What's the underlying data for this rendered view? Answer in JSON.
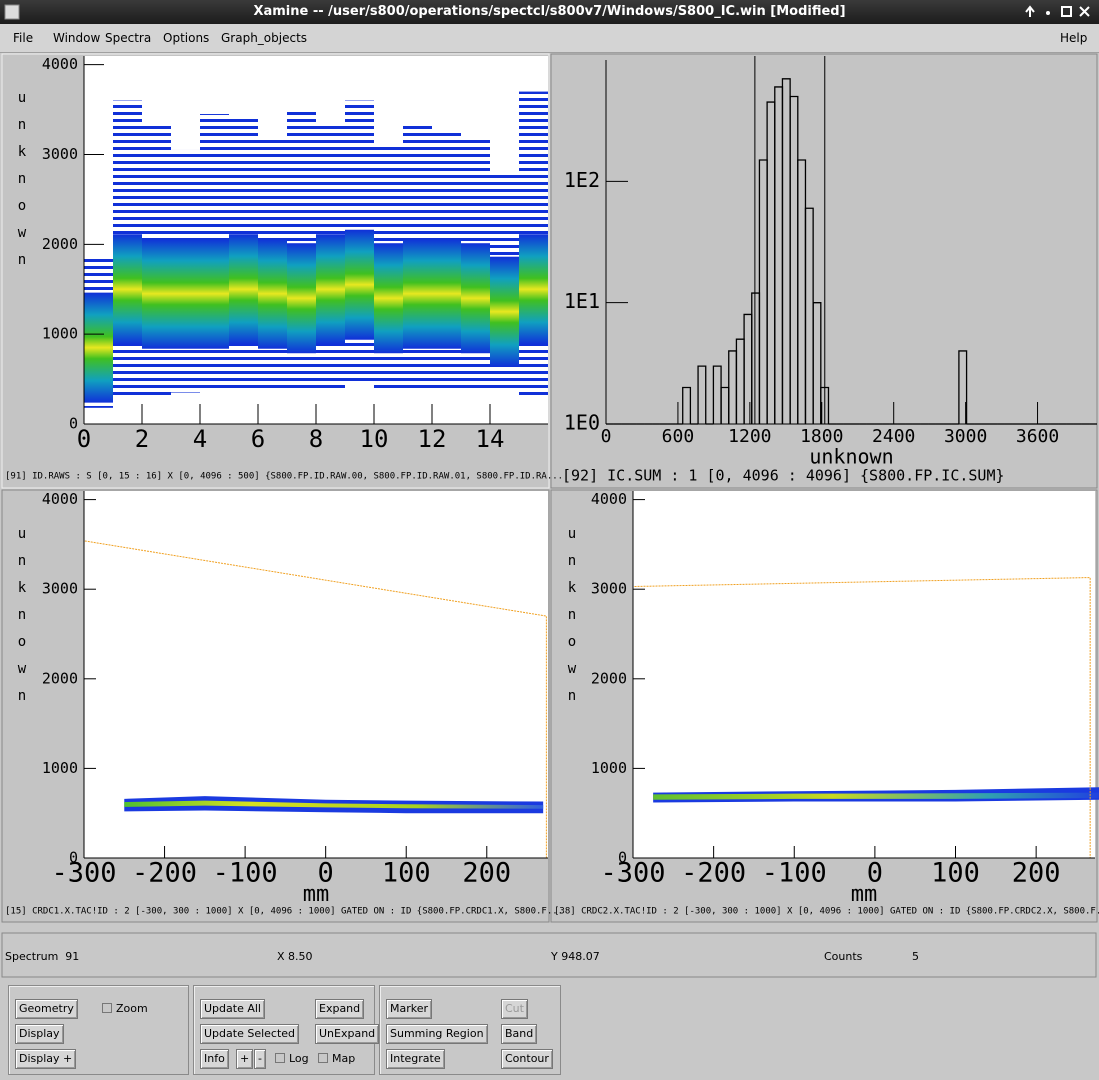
{
  "window": {
    "title": "Xamine -- /user/s800/operations/spectcl/s800v7/Windows/S800_IC.win [Modified]"
  },
  "menu": {
    "items": [
      "File",
      "Window",
      "Spectra",
      "Options",
      "Graph_objects"
    ],
    "help": "Help"
  },
  "chart_data": [
    {
      "type": "column-density",
      "ylabel": "unknown",
      "caption": "[91] ID.RAWS : S [0, 15 : 16] X [0, 4096 : 500] {S800.FP.ID.RAW.00, S800.FP.ID.RAW.01, S800.FP.ID.RA...",
      "xlim": [
        0,
        16
      ],
      "ylim": [
        0,
        4096
      ],
      "xticks": [
        0,
        2,
        4,
        6,
        8,
        10,
        12,
        14
      ],
      "yticks": [
        0,
        1000,
        2000,
        3000,
        4000
      ],
      "x": [
        0,
        1,
        2,
        3,
        4,
        5,
        6,
        7,
        8,
        9,
        10,
        11,
        12,
        13,
        14,
        15
      ],
      "top": [
        1850,
        3600,
        3350,
        3050,
        3450,
        3400,
        3200,
        3500,
        3350,
        3600,
        3100,
        3350,
        3250,
        3200,
        2800,
        3700
      ],
      "bottom": [
        180,
        300,
        300,
        350,
        400,
        400,
        400,
        400,
        380,
        450,
        380,
        400,
        400,
        400,
        400,
        280
      ],
      "peak": [
        850,
        1500,
        1450,
        1450,
        1450,
        1500,
        1450,
        1400,
        1500,
        1550,
        1400,
        1450,
        1450,
        1400,
        1250,
        1500
      ]
    },
    {
      "type": "histogram",
      "xlabel": "unknown",
      "log_y": true,
      "caption": "[92] IC.SUM : 1 [0, 4096 : 4096] {S800.FP.IC.SUM}",
      "xlim": [
        0,
        4096
      ],
      "ylim": [
        1,
        1000
      ],
      "xticks": [
        0,
        600,
        1200,
        1800,
        2400,
        3000,
        3600
      ],
      "yticks": [
        {
          "value": 1,
          "label": "1E0"
        },
        {
          "value": 10,
          "label": "1E1"
        },
        {
          "value": 100,
          "label": "1E2"
        }
      ],
      "bins": [
        0,
        64,
        128,
        192,
        256,
        320,
        384,
        448,
        512,
        576,
        640,
        704,
        768,
        832,
        896,
        960,
        1024,
        1088,
        1152,
        1216,
        1280,
        1344,
        1408,
        1472,
        1536,
        1600,
        1664,
        1728,
        1792,
        1856,
        1920,
        1984,
        2048,
        2112,
        2176,
        2240,
        2304,
        2368,
        2432,
        2496,
        2560,
        2624,
        2688,
        2752,
        2816,
        2880,
        2944,
        3008,
        3072,
        3136,
        3200,
        3264,
        3328,
        3392,
        3456,
        3520,
        3584,
        3648,
        3712,
        3776,
        3840,
        3904,
        3968,
        4032,
        4096
      ],
      "values": [
        0,
        0,
        0,
        0,
        0,
        0,
        1,
        0,
        1,
        1,
        2,
        1,
        3,
        1,
        3,
        2,
        4,
        5,
        8,
        12,
        150,
        450,
        600,
        700,
        500,
        150,
        60,
        10,
        2,
        1,
        1,
        1,
        1,
        1,
        1,
        1,
        1,
        1,
        1,
        1,
        1,
        1,
        1,
        1,
        1,
        1,
        4,
        1,
        1,
        0,
        0,
        0,
        0,
        0,
        0,
        0,
        0,
        0,
        0,
        0,
        0,
        0,
        0,
        0
      ],
      "gates": [
        1242,
        1825
      ]
    },
    {
      "type": "density2d",
      "xlabel": "mm",
      "ylabel": "unknown",
      "caption": "[15] CRDC1.X.TAC!ID : 2 [-300, 300 : 1000] X [0, 4096 : 1000] GATED ON : ID {S800.FP.CRDC1.X, S800.F...",
      "xlim": [
        -300,
        276
      ],
      "ylim": [
        0,
        4096
      ],
      "xticks": [
        -300,
        -200,
        -100,
        0,
        100,
        200
      ],
      "yticks": [
        0,
        1000,
        2000,
        3000,
        4000
      ],
      "gate": {
        "x": [
          -300,
          -300,
          274,
          274
        ],
        "y": [
          0,
          3540,
          2700,
          0
        ]
      },
      "density": {
        "x": [
          -250,
          -150,
          0,
          100,
          270
        ],
        "outer_low": [
          520,
          530,
          510,
          500,
          500
        ],
        "outer_high": [
          660,
          690,
          650,
          640,
          630
        ],
        "core_low": [
          570,
          585,
          565,
          555,
          550
        ],
        "core_high": [
          625,
          640,
          610,
          600,
          590
        ]
      }
    },
    {
      "type": "density2d",
      "xlabel": "mm",
      "ylabel": "unknown",
      "caption": "[38] CRDC2.X.TAC!ID : 2 [-300, 300 : 1000] X [0, 4096 : 1000] GATED ON : ID {S800.FP.CRDC2.X, S800.F...",
      "xlim": [
        -300,
        273
      ],
      "ylim": [
        0,
        4096
      ],
      "xticks": [
        -300,
        -200,
        -100,
        0,
        100,
        200
      ],
      "yticks": [
        0,
        1000,
        2000,
        3000,
        4000
      ],
      "gate": {
        "x": [
          -300,
          -300,
          267,
          267
        ],
        "y": [
          0,
          3030,
          3130,
          0
        ]
      },
      "density": {
        "x": [
          -275,
          -100,
          100,
          280
        ],
        "outer_low": [
          620,
          630,
          630,
          650
        ],
        "outer_high": [
          730,
          745,
          760,
          790
        ],
        "core_low": [
          650,
          660,
          660,
          670
        ],
        "core_high": [
          710,
          718,
          722,
          730
        ]
      }
    }
  ],
  "status": {
    "spectrum": "Spectrum  91",
    "x": "X 8.50",
    "y": "Y 948.07",
    "counts_label": "Counts",
    "counts": 5
  },
  "controls": {
    "geometry": "Geometry",
    "zoom": "Zoom",
    "display": "Display",
    "display_plus": "Display +",
    "update_all": "Update All",
    "expand": "Expand",
    "update_selected": "Update Selected",
    "unexpand": "UnExpand",
    "info": "Info",
    "plus": "+",
    "minus": "-",
    "log": "Log",
    "map": "Map",
    "marker": "Marker",
    "cut": "Cut",
    "summing_region": "Summing Region",
    "band": "Band",
    "integrate": "Integrate",
    "contour": "Contour"
  }
}
